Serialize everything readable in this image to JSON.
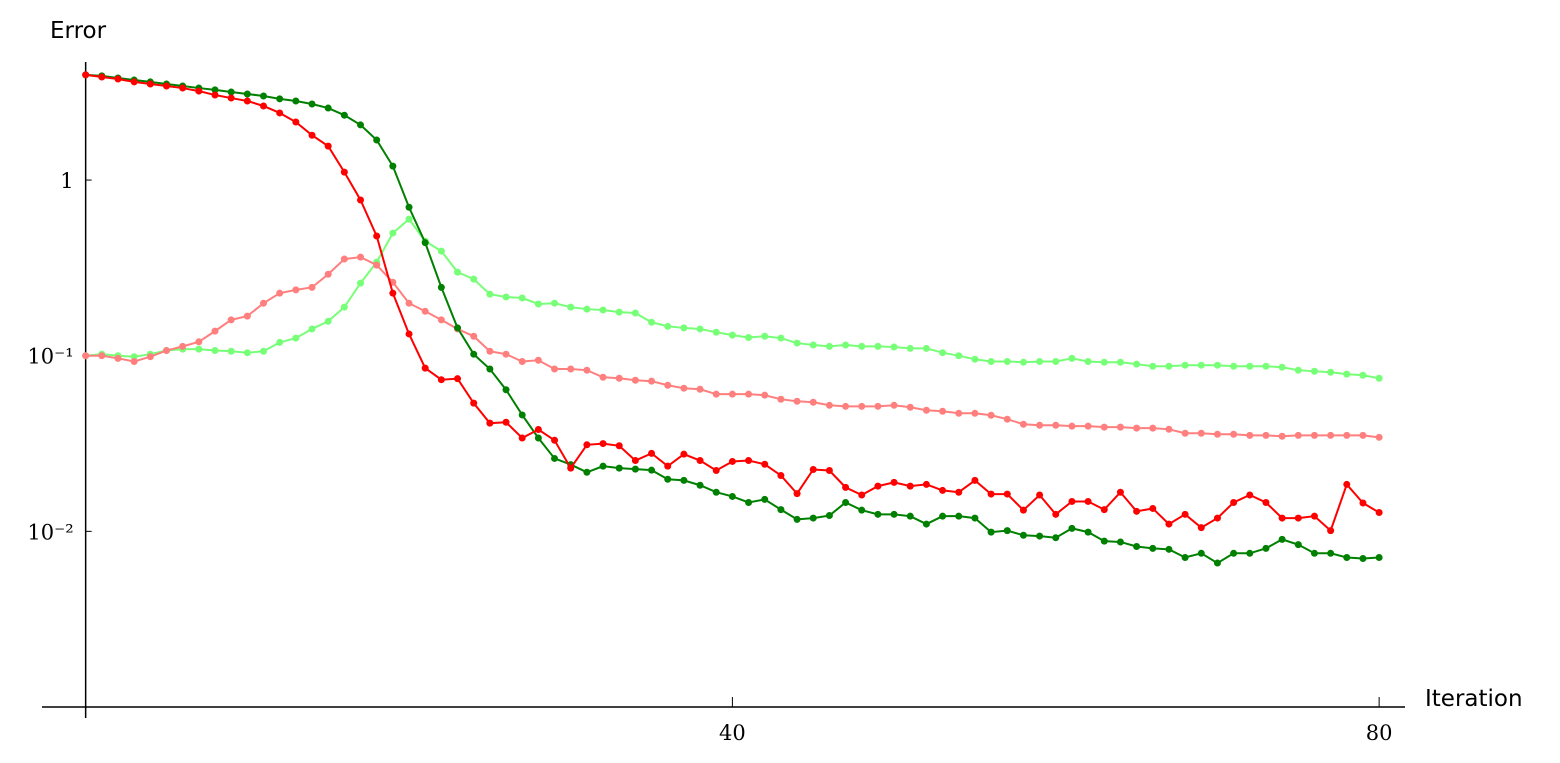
{
  "chart_data": {
    "type": "line",
    "y_label": "Error",
    "x_label": "Iteration",
    "y_scale": "log",
    "x": [
      0,
      1,
      2,
      3,
      4,
      5,
      6,
      7,
      8,
      9,
      10,
      11,
      12,
      13,
      14,
      15,
      16,
      17,
      18,
      19,
      20,
      21,
      22,
      23,
      24,
      25,
      26,
      27,
      28,
      29,
      30,
      31,
      32,
      33,
      34,
      35,
      36,
      37,
      38,
      39,
      40,
      41,
      42,
      43,
      44,
      45,
      46,
      47,
      48,
      49,
      50,
      51,
      52,
      53,
      54,
      55,
      56,
      57,
      58,
      59,
      60,
      61,
      62,
      63,
      64,
      65,
      66,
      67,
      68,
      69,
      70,
      71,
      72,
      73,
      74,
      75,
      76,
      77,
      78,
      79,
      80
    ],
    "xlim": [
      -2.7,
      81.6
    ],
    "xticks": [
      40,
      80
    ],
    "ylim": [
      0.001,
      4.7
    ],
    "yticks": [
      1,
      {
        "value": 0.1,
        "label": "10⁻¹"
      },
      {
        "value": 0.01,
        "label": "10⁻²"
      }
    ],
    "series": [
      {
        "color": "#77ff77",
        "values": [
          0.1,
          0.102,
          0.1,
          0.0987,
          0.102,
          0.107,
          0.109,
          0.109,
          0.107,
          0.106,
          0.104,
          0.106,
          0.119,
          0.126,
          0.142,
          0.157,
          0.189,
          0.259,
          0.341,
          0.499,
          0.599,
          0.449,
          0.394,
          0.299,
          0.273,
          0.224,
          0.216,
          0.213,
          0.197,
          0.199,
          0.189,
          0.184,
          0.182,
          0.177,
          0.175,
          0.155,
          0.147,
          0.144,
          0.142,
          0.136,
          0.131,
          0.127,
          0.129,
          0.126,
          0.118,
          0.115,
          0.113,
          0.115,
          0.113,
          0.113,
          0.112,
          0.11,
          0.11,
          0.104,
          0.1,
          0.0955,
          0.0927,
          0.0927,
          0.0918,
          0.0927,
          0.0927,
          0.0966,
          0.0927,
          0.0918,
          0.0918,
          0.0895,
          0.0871,
          0.0871,
          0.0883,
          0.0883,
          0.0883,
          0.0871,
          0.0871,
          0.0871,
          0.086,
          0.0827,
          0.0816,
          0.0805,
          0.0785,
          0.0774,
          0.0744
        ]
      },
      {
        "color": "#ff7f7f",
        "values": [
          0.1,
          0.1,
          0.0966,
          0.0927,
          0.0987,
          0.107,
          0.113,
          0.12,
          0.138,
          0.16,
          0.168,
          0.199,
          0.227,
          0.237,
          0.245,
          0.291,
          0.355,
          0.364,
          0.328,
          0.262,
          0.199,
          0.179,
          0.16,
          0.142,
          0.129,
          0.106,
          0.102,
          0.0927,
          0.0942,
          0.084,
          0.084,
          0.0827,
          0.0754,
          0.0744,
          0.0725,
          0.0716,
          0.0679,
          0.0653,
          0.0644,
          0.0604,
          0.0604,
          0.0604,
          0.0596,
          0.0565,
          0.055,
          0.0543,
          0.0522,
          0.0515,
          0.0515,
          0.0515,
          0.0522,
          0.0509,
          0.0489,
          0.0483,
          0.047,
          0.047,
          0.0458,
          0.0435,
          0.0407,
          0.0402,
          0.0402,
          0.0397,
          0.0397,
          0.0392,
          0.0392,
          0.0387,
          0.0387,
          0.0381,
          0.0362,
          0.0362,
          0.0357,
          0.0357,
          0.0352,
          0.0352,
          0.0348,
          0.0352,
          0.0352,
          0.0352,
          0.0352,
          0.0352,
          0.0343
        ]
      },
      {
        "color": "#008000",
        "values": [
          3.97,
          3.92,
          3.81,
          3.71,
          3.62,
          3.52,
          3.43,
          3.34,
          3.26,
          3.17,
          3.09,
          3.01,
          2.9,
          2.82,
          2.71,
          2.57,
          2.34,
          2.06,
          1.69,
          1.2,
          0.7,
          0.44,
          0.245,
          0.144,
          0.102,
          0.084,
          0.064,
          0.046,
          0.034,
          0.026,
          0.024,
          0.0217,
          0.0235,
          0.0229,
          0.0226,
          0.0223,
          0.0198,
          0.0195,
          0.0183,
          0.0167,
          0.0158,
          0.0146,
          0.0152,
          0.0133,
          0.0117,
          0.0119,
          0.0123,
          0.0146,
          0.0132,
          0.0125,
          0.0125,
          0.0122,
          0.011,
          0.0122,
          0.0122,
          0.0119,
          0.0099,
          0.0101,
          0.0095,
          0.0094,
          0.0092,
          0.0104,
          0.0099,
          0.0088,
          0.0087,
          0.0082,
          0.008,
          0.0079,
          0.0071,
          0.0075,
          0.0066,
          0.0075,
          0.0075,
          0.008,
          0.009,
          0.0084,
          0.0075,
          0.0075,
          0.0071,
          0.007,
          0.0071
        ]
      },
      {
        "color": "#ff0000",
        "values": [
          3.97,
          3.86,
          3.76,
          3.62,
          3.52,
          3.43,
          3.34,
          3.21,
          3.05,
          2.93,
          2.82,
          2.64,
          2.41,
          2.14,
          1.8,
          1.56,
          1.11,
          0.77,
          0.48,
          0.227,
          0.133,
          0.085,
          0.073,
          0.074,
          0.0537,
          0.0413,
          0.0418,
          0.034,
          0.038,
          0.033,
          0.0229,
          0.0311,
          0.0316,
          0.0307,
          0.0253,
          0.0278,
          0.0235,
          0.0275,
          0.0253,
          0.0222,
          0.025,
          0.0253,
          0.0241,
          0.0208,
          0.0164,
          0.0225,
          0.0222,
          0.0178,
          0.0161,
          0.0181,
          0.019,
          0.0181,
          0.0185,
          0.0171,
          0.0167,
          0.0195,
          0.0163,
          0.0163,
          0.0132,
          0.0161,
          0.0125,
          0.0148,
          0.0148,
          0.0133,
          0.0167,
          0.013,
          0.0135,
          0.011,
          0.0125,
          0.0105,
          0.0119,
          0.0146,
          0.0161,
          0.0146,
          0.0119,
          0.0119,
          0.0122,
          0.0101,
          0.0185,
          0.0145,
          0.0128
        ]
      }
    ]
  }
}
